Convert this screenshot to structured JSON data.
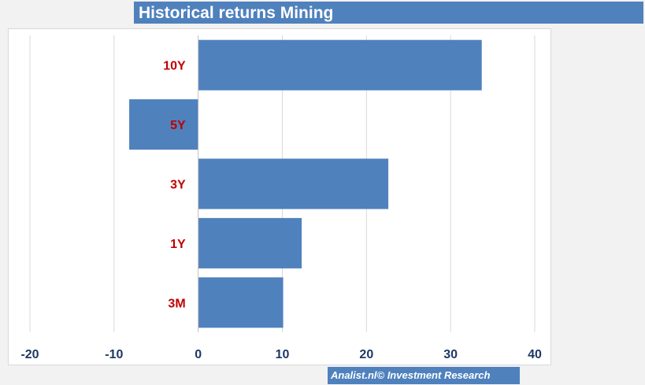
{
  "header": {
    "title": "Historical returns Mining"
  },
  "footer": {
    "credit": "Analist.nl© Investment Research"
  },
  "colors": {
    "bar": "#4f81bd",
    "category_label": "#c00000",
    "tick_label": "#1f3864",
    "gridline": "#d9d9d9"
  },
  "chart_data": {
    "type": "bar",
    "orientation": "horizontal",
    "title": "Historical returns Mining",
    "categories": [
      "10Y",
      "5Y",
      "3Y",
      "1Y",
      "3M"
    ],
    "values": [
      33.7,
      -8.2,
      22.6,
      12.3,
      10.1
    ],
    "xlim": [
      -20,
      40
    ],
    "xticks": [
      "-20",
      "-10",
      "0",
      "10",
      "20",
      "30",
      "40"
    ],
    "xtick_values": [
      -20,
      -10,
      0,
      10,
      20,
      30,
      40
    ],
    "grid": true,
    "legend": "none"
  }
}
